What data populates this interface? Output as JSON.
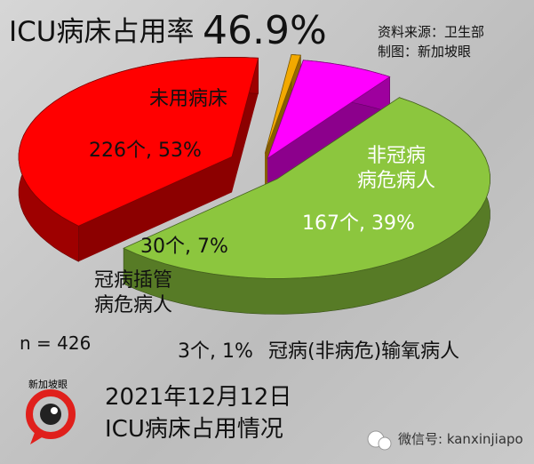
{
  "chart_data": {
    "type": "pie",
    "title": "ICU病床占用率",
    "headline": "46.9%",
    "source": "资料来源：卫生部",
    "credit": "制图：新加坡眼",
    "categories": [
      "未用病床",
      "非冠病\n病危病人",
      "冠病(非病危)输氧病人",
      "冠病插管\n病危病人"
    ],
    "values": [
      226,
      167,
      3,
      30
    ],
    "value_labels": [
      "226个, 53%",
      "167个, 39%",
      "3个, 1%",
      "30个, 7%"
    ],
    "colors": [
      "#8cc63e",
      "#ff0000",
      "#f2a900",
      "#ff00ff"
    ],
    "note": "n = 426",
    "caption": [
      "2021年12月12日",
      "ICU病床占用情况"
    ]
  },
  "logo": "新加坡眼",
  "watermark": "微信号: kanxinjiapo"
}
